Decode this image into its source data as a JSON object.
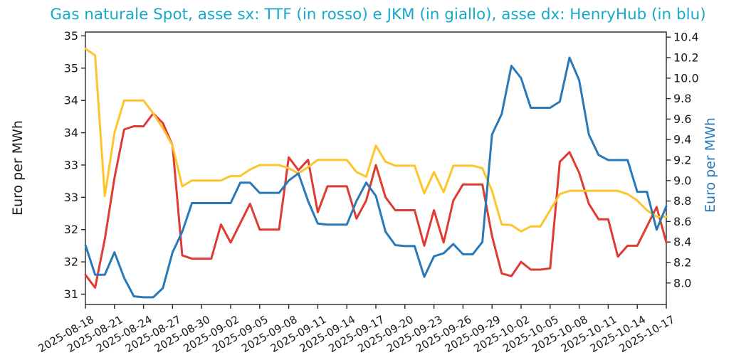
{
  "title": {
    "text": "Gas naturale Spot, asse sx: TTF (in rosso) e JKM (in giallo), asse dx: HenryHub (in blu)",
    "color": "#16A9C9"
  },
  "left_axis": {
    "label": "Euro per MWh",
    "label_color": "#1a1a1a",
    "tick_labels": [
      "35",
      "35",
      "34",
      "34",
      "33",
      "33",
      "32",
      "32",
      "31"
    ],
    "tick_values": [
      35,
      34.5,
      34,
      33.5,
      33,
      32.5,
      32,
      31.5,
      31
    ],
    "ylim": [
      30.84,
      35.06
    ]
  },
  "right_axis": {
    "label": "Euro per MWh",
    "label_color": "#2979B9",
    "tick_labels": [
      "10.4",
      "10.2",
      "10.0",
      "9.8",
      "9.6",
      "9.4",
      "9.2",
      "9.0",
      "8.8",
      "8.6",
      "8.4",
      "8.2",
      "8.0"
    ],
    "tick_values": [
      10.4,
      10.2,
      10.0,
      9.8,
      9.6,
      9.4,
      9.2,
      9.0,
      8.8,
      8.6,
      8.4,
      8.2,
      8.0
    ],
    "ylim": [
      7.79,
      10.45
    ]
  },
  "x_axis": {
    "tick_labels": [
      "2025-08-18",
      "2025-08-21",
      "2025-08-24",
      "2025-08-27",
      "2025-08-30",
      "2025-09-02",
      "2025-09-05",
      "2025-09-08",
      "2025-09-11",
      "2025-09-14",
      "2025-09-17",
      "2025-09-20",
      "2025-09-23",
      "2025-09-26",
      "2025-09-29",
      "2025-10-02",
      "2025-10-05",
      "2025-10-08",
      "2025-10-11",
      "2025-10-14",
      "2025-10-17"
    ],
    "tick_day_indices": [
      0,
      3,
      6,
      9,
      12,
      15,
      18,
      21,
      24,
      27,
      30,
      33,
      36,
      39,
      42,
      45,
      48,
      51,
      54,
      57,
      60
    ]
  },
  "chart_data": {
    "type": "line",
    "title": "Gas naturale Spot, asse sx: TTF (in rosso) e JKM (in giallo), asse dx: HenryHub (in blu)",
    "xlabel": "",
    "ylabel_left": "Euro per MWh",
    "ylabel_right": "Euro per MWh",
    "grid": false,
    "legend_position": "none",
    "left_ylim": [
      30.84,
      35.06
    ],
    "right_ylim": [
      7.79,
      10.45
    ],
    "x": [
      "2025-08-18",
      "2025-08-19",
      "2025-08-20",
      "2025-08-21",
      "2025-08-22",
      "2025-08-23",
      "2025-08-24",
      "2025-08-25",
      "2025-08-26",
      "2025-08-27",
      "2025-08-28",
      "2025-08-29",
      "2025-08-30",
      "2025-08-31",
      "2025-09-01",
      "2025-09-02",
      "2025-09-03",
      "2025-09-04",
      "2025-09-05",
      "2025-09-06",
      "2025-09-07",
      "2025-09-08",
      "2025-09-09",
      "2025-09-10",
      "2025-09-11",
      "2025-09-12",
      "2025-09-13",
      "2025-09-14",
      "2025-09-15",
      "2025-09-16",
      "2025-09-17",
      "2025-09-18",
      "2025-09-19",
      "2025-09-20",
      "2025-09-21",
      "2025-09-22",
      "2025-09-23",
      "2025-09-24",
      "2025-09-25",
      "2025-09-26",
      "2025-09-27",
      "2025-09-28",
      "2025-09-29",
      "2025-09-30",
      "2025-10-01",
      "2025-10-02",
      "2025-10-03",
      "2025-10-04",
      "2025-10-05",
      "2025-10-06",
      "2025-10-07",
      "2025-10-08",
      "2025-10-09",
      "2025-10-10",
      "2025-10-11",
      "2025-10-12",
      "2025-10-13",
      "2025-10-14",
      "2025-10-15",
      "2025-10-16",
      "2025-10-17"
    ],
    "series": [
      {
        "name": "TTF",
        "axis": "left",
        "color": "#DF3B32",
        "values": [
          31.3,
          31.1,
          31.85,
          32.8,
          33.55,
          33.6,
          33.6,
          33.8,
          33.65,
          33.3,
          31.6,
          31.55,
          31.55,
          31.55,
          32.08,
          31.8,
          32.1,
          32.4,
          32.0,
          32.0,
          32.0,
          33.12,
          32.92,
          33.08,
          32.27,
          32.67,
          32.67,
          32.67,
          32.17,
          32.45,
          33.0,
          32.5,
          32.3,
          32.3,
          32.3,
          31.75,
          32.3,
          31.8,
          32.45,
          32.7,
          32.7,
          32.7,
          31.9,
          31.32,
          31.28,
          31.5,
          31.38,
          31.38,
          31.4,
          33.05,
          33.2,
          32.88,
          32.4,
          32.16,
          32.16,
          31.58,
          31.75,
          31.75,
          32.05,
          32.35,
          31.8
        ]
      },
      {
        "name": "JKM",
        "axis": "left",
        "color": "#FDC42C",
        "values": [
          34.8,
          34.7,
          32.52,
          33.5,
          34.0,
          34.0,
          34.0,
          33.8,
          33.57,
          33.3,
          32.67,
          32.76,
          32.76,
          32.76,
          32.76,
          32.83,
          32.83,
          32.93,
          33.0,
          33.0,
          33.0,
          32.95,
          32.87,
          32.97,
          33.08,
          33.08,
          33.08,
          33.08,
          32.89,
          32.82,
          33.3,
          33.05,
          32.99,
          32.99,
          32.99,
          32.56,
          32.89,
          32.58,
          32.99,
          32.99,
          32.99,
          32.95,
          32.6,
          32.08,
          32.07,
          31.97,
          32.05,
          32.05,
          32.3,
          32.55,
          32.6,
          32.6,
          32.6,
          32.6,
          32.6,
          32.6,
          32.55,
          32.45,
          32.3,
          32.2,
          32.2
        ]
      },
      {
        "name": "HenryHub",
        "axis": "right",
        "color": "#2979B9",
        "values": [
          8.37,
          8.08,
          8.08,
          8.3,
          8.05,
          7.87,
          7.86,
          7.86,
          7.95,
          8.3,
          8.5,
          8.78,
          8.78,
          8.78,
          8.78,
          8.78,
          8.98,
          8.98,
          8.88,
          8.88,
          8.88,
          9.0,
          9.07,
          8.8,
          8.58,
          8.57,
          8.57,
          8.57,
          8.8,
          8.98,
          8.85,
          8.5,
          8.37,
          8.36,
          8.36,
          8.06,
          8.26,
          8.29,
          8.38,
          8.28,
          8.28,
          8.4,
          9.45,
          9.65,
          10.12,
          10.0,
          9.71,
          9.71,
          9.71,
          9.77,
          10.2,
          9.98,
          9.45,
          9.25,
          9.2,
          9.2,
          9.2,
          8.89,
          8.89,
          8.52,
          8.75
        ]
      }
    ]
  }
}
